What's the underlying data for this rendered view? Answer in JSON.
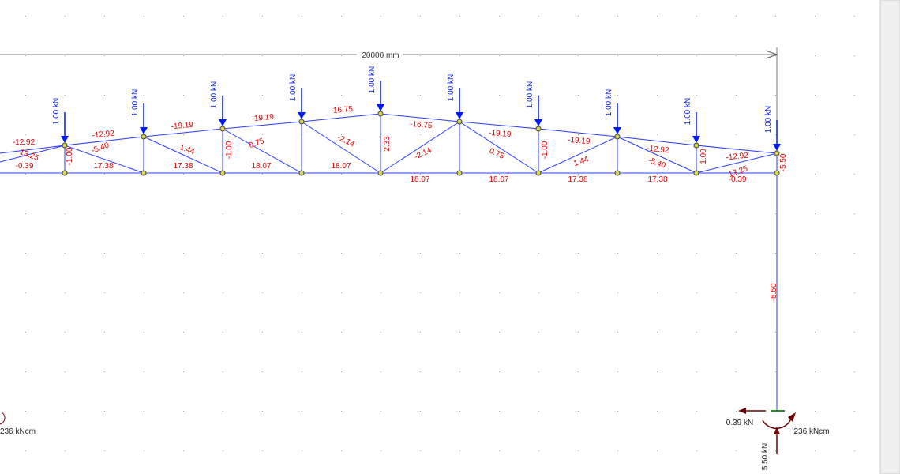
{
  "dimension": "20000 mm",
  "loads": [
    "1.00 kN",
    "1.00 kN",
    "1.00 kN",
    "1.00 kN",
    "1.00 kN",
    "1.00 kN",
    "1.00 kN",
    "1.00 kN",
    "1.00 kN",
    "1.00 kN"
  ],
  "member_forces": [
    "-12.92",
    "-12.92",
    "-19.19",
    "-19.19",
    "-16.75",
    "-16.75",
    "-19.19",
    "-19.19",
    "-12.92",
    "-12.92",
    "13.25",
    "-5.40",
    "1.44",
    "0.75",
    "-2.14",
    "-2.14",
    "0.75",
    "1.44",
    "-5.40",
    "13.25",
    "-1.00",
    "-1.00",
    "2.33",
    "-1.00",
    "1.00",
    "-5.50",
    "-5.50",
    "-0.39",
    "17.38",
    "17.38",
    "18.07",
    "18.07",
    "18.07",
    "18.07",
    "17.38",
    "17.38",
    "-0.39"
  ],
  "reactions": [
    "236 kNcm",
    "0.39 kN",
    "236 kNcm",
    "5.50 kN"
  ]
}
